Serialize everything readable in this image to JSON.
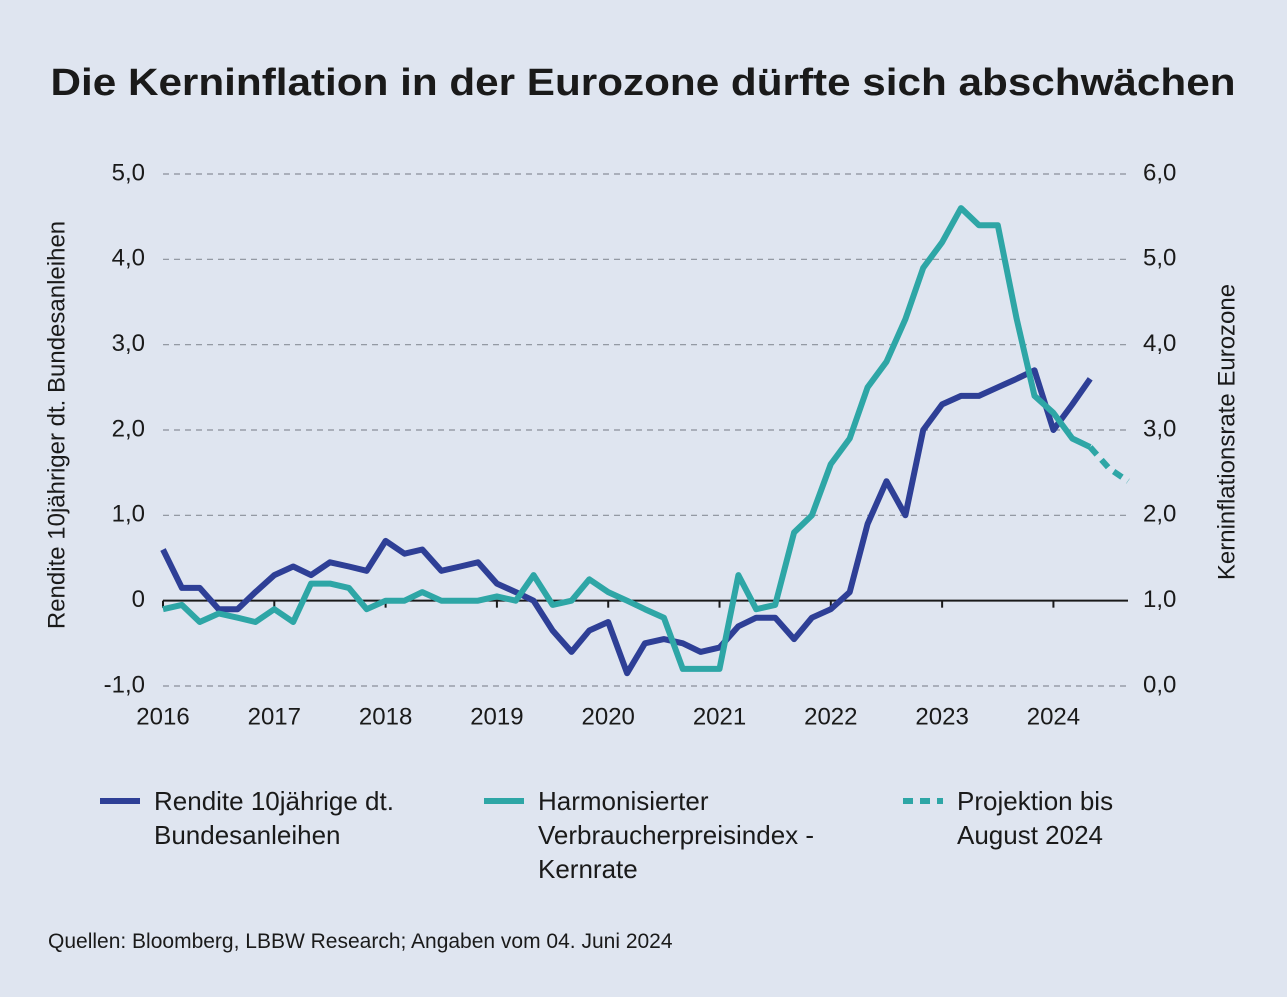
{
  "chart_data": {
    "type": "line",
    "title": "Die Kerninflation in der Eurozone dürfte sich abschwächen",
    "y_label": "Rendite 10jähriger dt. Bundesanleihen",
    "y2_label": "Kerninflationsrate Eurozone",
    "source": "Quellen: Bloomberg, LBBW Research; Angaben vom 04. Juni 2024",
    "x": [
      2016,
      2016.17,
      2016.33,
      2016.5,
      2016.67,
      2016.83,
      2017,
      2017.17,
      2017.33,
      2017.5,
      2017.67,
      2017.83,
      2018,
      2018.17,
      2018.33,
      2018.5,
      2018.67,
      2018.83,
      2019,
      2019.17,
      2019.33,
      2019.5,
      2019.67,
      2019.83,
      2020,
      2020.17,
      2020.33,
      2020.5,
      2020.67,
      2020.83,
      2021,
      2021.17,
      2021.33,
      2021.5,
      2021.67,
      2021.83,
      2022,
      2022.17,
      2022.33,
      2022.5,
      2022.67,
      2022.83,
      2023,
      2023.17,
      2023.33,
      2023.5,
      2023.67,
      2023.83,
      2024,
      2024.17,
      2024.33,
      2024.5,
      2024.67
    ],
    "xlim": [
      2016,
      2024.67
    ],
    "xticks": [
      2016,
      2017,
      2018,
      2019,
      2020,
      2021,
      2022,
      2023,
      2024
    ],
    "ylim": [
      -1,
      5
    ],
    "yticks": [
      {
        "value": -1,
        "label": "-1,0"
      },
      0,
      {
        "value": 1,
        "label": "1,0"
      },
      {
        "value": 2,
        "label": "2,0"
      },
      {
        "value": 3,
        "label": "3,0"
      },
      {
        "value": 4,
        "label": "4,0"
      },
      {
        "value": 5,
        "label": "5,0"
      }
    ],
    "y2lim": [
      0,
      6
    ],
    "y2ticks": [
      {
        "value": 0,
        "label": "0,0"
      },
      {
        "value": 1,
        "label": "1,0"
      },
      {
        "value": 2,
        "label": "2,0"
      },
      {
        "value": 3,
        "label": "3,0"
      },
      {
        "value": 4,
        "label": "4,0"
      },
      {
        "value": 5,
        "label": "5,0"
      },
      {
        "value": 6,
        "label": "6,0"
      }
    ],
    "grid": true,
    "series": [
      {
        "name": "Rendite 10jährige dt. Bundesanleihen",
        "color": "#2e3f96",
        "axis": "y",
        "values": [
          0.6,
          0.15,
          0.15,
          -0.1,
          -0.1,
          0.1,
          0.3,
          0.4,
          0.3,
          0.45,
          0.4,
          0.35,
          0.7,
          0.55,
          0.6,
          0.35,
          0.4,
          0.45,
          0.2,
          0.1,
          0.0,
          -0.35,
          -0.6,
          -0.35,
          -0.25,
          -0.85,
          -0.5,
          -0.45,
          -0.5,
          -0.6,
          -0.55,
          -0.3,
          -0.2,
          -0.2,
          -0.45,
          -0.2,
          -0.1,
          0.1,
          0.9,
          1.4,
          1.0,
          2.0,
          2.3,
          2.4,
          2.4,
          2.5,
          2.6,
          2.7,
          2.0,
          2.3,
          2.6,
          null,
          null
        ]
      },
      {
        "name": "Harmonisierter Verbraucherpreisindex - Kernrate",
        "color": "#2ea6a6",
        "axis": "y2",
        "values": [
          0.9,
          0.95,
          0.75,
          0.85,
          0.8,
          0.75,
          0.9,
          0.75,
          1.2,
          1.2,
          1.15,
          0.9,
          1.0,
          1.0,
          1.1,
          1.0,
          1.0,
          1.0,
          1.05,
          1.0,
          1.3,
          0.95,
          1.0,
          1.25,
          1.1,
          1.0,
          0.9,
          0.8,
          0.2,
          0.2,
          0.2,
          1.3,
          0.9,
          0.95,
          1.8,
          2.0,
          2.6,
          2.9,
          3.5,
          3.8,
          4.3,
          4.9,
          5.2,
          5.6,
          5.4,
          5.4,
          4.3,
          3.4,
          3.2,
          2.9,
          2.8,
          null,
          null
        ]
      },
      {
        "name": "Projektion bis August 2024",
        "color": "#2ea6a6",
        "axis": "y2",
        "dashed": true,
        "values": [
          null,
          null,
          null,
          null,
          null,
          null,
          null,
          null,
          null,
          null,
          null,
          null,
          null,
          null,
          null,
          null,
          null,
          null,
          null,
          null,
          null,
          null,
          null,
          null,
          null,
          null,
          null,
          null,
          null,
          null,
          null,
          null,
          null,
          null,
          null,
          null,
          null,
          null,
          null,
          null,
          null,
          null,
          null,
          null,
          null,
          null,
          null,
          null,
          null,
          null,
          2.8,
          2.55,
          2.4
        ]
      }
    ]
  }
}
